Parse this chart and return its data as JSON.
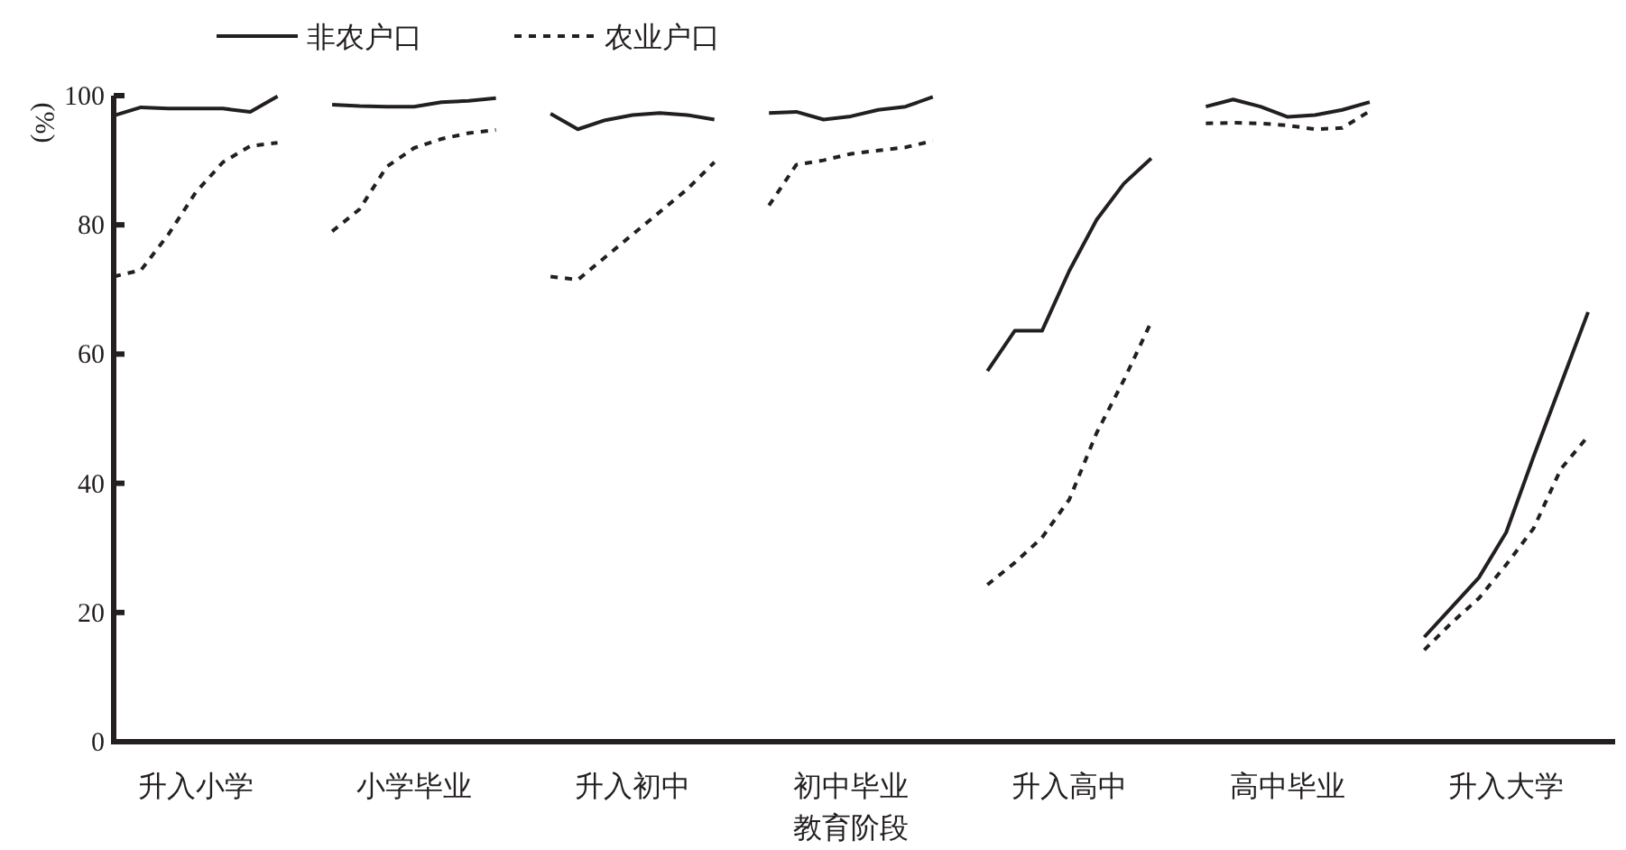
{
  "chart_data": {
    "type": "line",
    "xlabel": "教育阶段",
    "ylabel": "(%)",
    "legend": "top",
    "ylim": [
      0,
      100
    ],
    "yticks": [
      0,
      20,
      40,
      60,
      80,
      100
    ],
    "grid": false,
    "categories": [
      null,
      null,
      null,
      "升入小学",
      null,
      null,
      null,
      null,
      null,
      null,
      null,
      "小学毕业",
      null,
      null,
      null,
      null,
      null,
      null,
      null,
      "升入初中",
      null,
      null,
      null,
      null,
      null,
      null,
      null,
      "初中毕业",
      null,
      null,
      null,
      null,
      null,
      null,
      null,
      "升入高中",
      null,
      null,
      null,
      null,
      null,
      null,
      null,
      "高中毕业",
      null,
      null,
      null,
      null,
      null,
      null,
      null,
      "升入大学",
      null,
      null,
      null
    ],
    "series": [
      {
        "name": "非农户口",
        "color": "#231f20",
        "line_style": "solid",
        "values": [
          96.9,
          98.2,
          98,
          98,
          98,
          97.5,
          99.9,
          null,
          98.6,
          98.4,
          98.3,
          98.3,
          99,
          99.2,
          99.6,
          null,
          97.2,
          94.8,
          96.2,
          97,
          97.3,
          97,
          96.3,
          null,
          97.3,
          97.5,
          96.3,
          96.8,
          97.8,
          98.3,
          99.8,
          null,
          57.4,
          63.6,
          63.6,
          72.9,
          80.8,
          86.4,
          90.3,
          null,
          98.3,
          99.4,
          98.3,
          96.7,
          97,
          97.8,
          99,
          null,
          16.2,
          20.8,
          25.4,
          32.4,
          44.1,
          55.3,
          66.5
        ]
      },
      {
        "name": "农业户口",
        "color": "#231f20",
        "line_style": "dashed",
        "values": [
          72,
          73,
          78.5,
          85,
          89.7,
          92.2,
          92.7,
          null,
          79,
          82.4,
          89,
          91.9,
          93.3,
          94.2,
          94.7,
          null,
          72,
          71.5,
          75,
          78.5,
          82,
          85.5,
          89.7,
          null,
          83,
          89.3,
          90,
          91,
          91.5,
          92,
          93,
          null,
          24.3,
          27.7,
          31.6,
          37.5,
          47.8,
          56,
          65,
          null,
          95.7,
          95.8,
          95.7,
          95.4,
          94.8,
          95,
          97.6,
          null,
          14.2,
          18.4,
          22.2,
          27.4,
          33,
          42.2,
          47.3
        ]
      }
    ]
  }
}
